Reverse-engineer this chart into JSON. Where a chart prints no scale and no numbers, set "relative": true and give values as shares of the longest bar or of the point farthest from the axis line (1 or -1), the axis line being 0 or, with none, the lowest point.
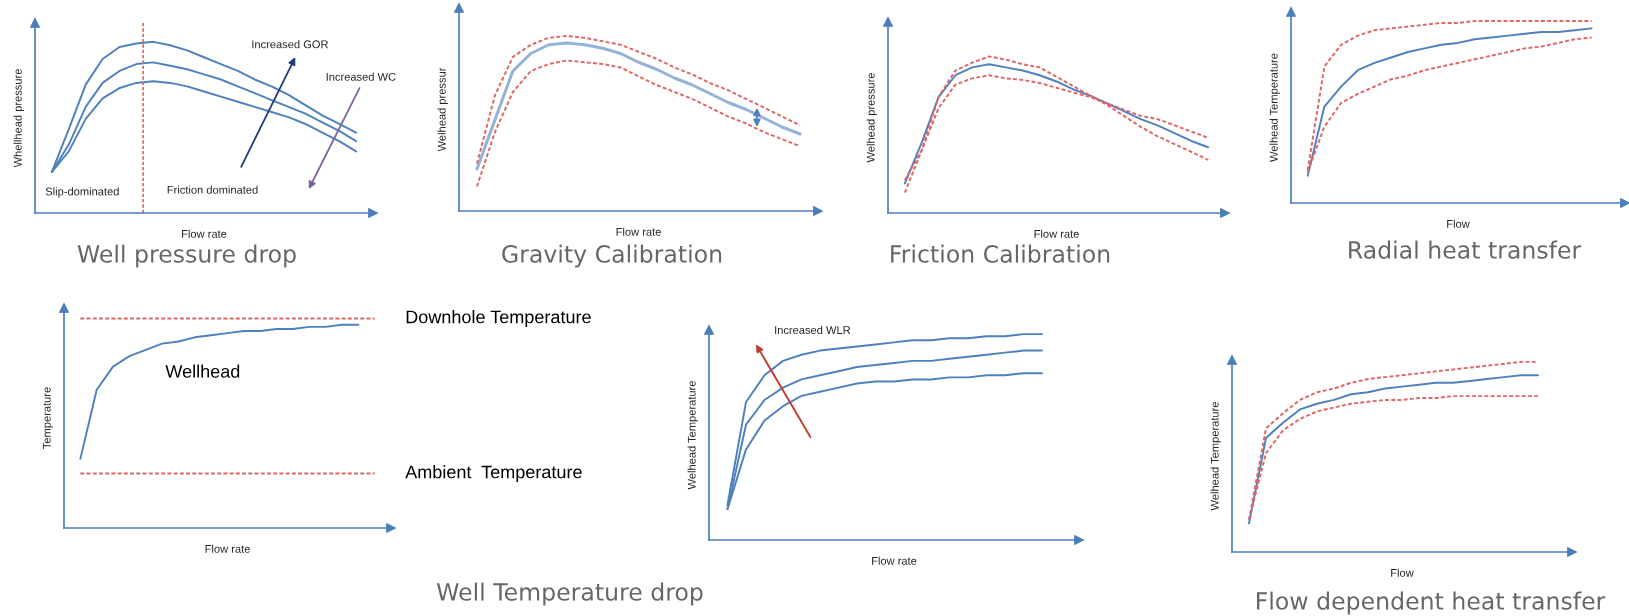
{
  "chart_data": [
    {
      "type": "line",
      "relative": true,
      "title": "Well pressure drop",
      "xlabel": "Flow rate",
      "ylabel": "Whellhead pressure",
      "categories": [
        null,
        null,
        null,
        null,
        null,
        null,
        null,
        null,
        null,
        null,
        null,
        null,
        null,
        null,
        null,
        null,
        null,
        null,
        null,
        null
      ],
      "series": [
        {
          "color": "#4f81bd",
          "line_style": "solid",
          "values": [
            0.24,
            0.49,
            0.75,
            0.9,
            0.97,
            0.99,
            1.0,
            0.98,
            0.95,
            0.91,
            0.87,
            0.83,
            0.78,
            0.74,
            0.69,
            0.63,
            0.57,
            0.52,
            0.47,
            null
          ]
        },
        {
          "color": "#4f81bd",
          "line_style": "solid",
          "values": [
            0.24,
            0.4,
            0.62,
            0.76,
            0.83,
            0.87,
            0.88,
            0.86,
            0.84,
            0.81,
            0.78,
            0.74,
            0.7,
            0.66,
            0.62,
            0.58,
            0.53,
            0.48,
            0.42,
            null
          ]
        },
        {
          "color": "#4f81bd",
          "line_style": "solid",
          "values": [
            0.24,
            0.36,
            0.55,
            0.67,
            0.73,
            0.76,
            0.77,
            0.76,
            0.74,
            0.71,
            0.68,
            0.65,
            0.62,
            0.59,
            0.56,
            0.52,
            0.47,
            0.42,
            0.36,
            null
          ]
        }
      ],
      "annotations": [
        "Slip-dominated",
        "Friction dominated",
        "Increased GOR",
        "Increased WC"
      ]
    },
    {
      "type": "line",
      "relative": true,
      "title": "Gravity Calibration",
      "xlabel": "Flow rate",
      "ylabel": "Welhead pressur",
      "categories": [
        null,
        null,
        null,
        null,
        null,
        null,
        null,
        null,
        null,
        null,
        null,
        null,
        null,
        null,
        null,
        null,
        null,
        null,
        null,
        null
      ],
      "series": [
        {
          "color": "#95b3d7",
          "line_style": "solid",
          "values": [
            0.24,
            0.52,
            0.8,
            0.9,
            0.95,
            0.96,
            0.95,
            0.93,
            0.9,
            0.85,
            0.81,
            0.76,
            0.72,
            0.67,
            0.62,
            0.58,
            0.53,
            0.48,
            0.44,
            null
          ]
        },
        {
          "color": "#e06666",
          "line_style": "dashed",
          "values": [
            0.27,
            0.66,
            0.88,
            0.95,
            0.99,
            1,
            0.99,
            0.97,
            0.95,
            0.91,
            0.87,
            0.82,
            0.78,
            0.73,
            0.69,
            0.64,
            0.59,
            0.54,
            0.49,
            null
          ]
        },
        {
          "color": "#e06666",
          "line_style": "dashed",
          "values": [
            0.14,
            0.45,
            0.68,
            0.8,
            0.84,
            0.86,
            0.85,
            0.84,
            0.82,
            0.77,
            0.72,
            0.68,
            0.64,
            0.59,
            0.54,
            0.5,
            0.45,
            0.41,
            0.37,
            null
          ]
        }
      ]
    },
    {
      "type": "line",
      "relative": true,
      "title": "Friction Calibration",
      "xlabel": "Flow rate",
      "ylabel": "Welhead pressure",
      "categories": [
        null,
        null,
        null,
        null,
        null,
        null,
        null,
        null,
        null,
        null,
        null,
        null,
        null,
        null,
        null,
        null,
        null,
        null,
        null,
        null
      ],
      "series": [
        {
          "color": "#4f81bd",
          "line_style": "solid",
          "values": [
            0.19,
            0.45,
            0.74,
            0.88,
            0.93,
            0.95,
            0.93,
            0.91,
            0.88,
            0.84,
            0.79,
            0.75,
            0.7,
            0.65,
            0.6,
            0.56,
            0.51,
            0.46,
            0.42,
            null
          ]
        },
        {
          "color": "#e06666",
          "line_style": "dashed",
          "values": [
            0.13,
            0.4,
            0.74,
            0.91,
            0.96,
            1,
            0.98,
            0.95,
            0.93,
            0.87,
            0.81,
            0.75,
            0.69,
            0.62,
            0.55,
            0.49,
            0.44,
            0.39,
            0.34,
            null
          ]
        },
        {
          "color": "#e06666",
          "line_style": "dashed",
          "values": [
            0.21,
            0.4,
            0.67,
            0.82,
            0.86,
            0.88,
            0.86,
            0.85,
            0.83,
            0.8,
            0.77,
            0.74,
            0.7,
            0.66,
            0.62,
            0.6,
            0.56,
            0.52,
            0.48,
            null
          ]
        }
      ]
    },
    {
      "type": "line",
      "relative": true,
      "title": "Radial heat transfer",
      "xlabel": "Flow",
      "ylabel": "Welhead Temperature",
      "categories": [
        null,
        null,
        null,
        null,
        null,
        null,
        null,
        null,
        null,
        null,
        null,
        null,
        null,
        null,
        null,
        null,
        null,
        null,
        null,
        null
      ],
      "series": [
        {
          "color": "#4f81bd",
          "line_style": "solid",
          "values": [
            0.15,
            0.53,
            0.64,
            0.73,
            0.77,
            0.8,
            0.83,
            0.85,
            0.87,
            0.88,
            0.9,
            0.91,
            0.92,
            0.93,
            0.94,
            0.94,
            0.95,
            0.96,
            null,
            null
          ]
        },
        {
          "color": "#e06666",
          "line_style": "dashed",
          "values": [
            0.18,
            0.75,
            0.87,
            0.92,
            0.95,
            0.96,
            0.97,
            0.98,
            0.99,
            0.99,
            1,
            1,
            1,
            1,
            1,
            1,
            1,
            1,
            null,
            null
          ]
        },
        {
          "color": "#e06666",
          "line_style": "dashed",
          "values": [
            0.17,
            0.42,
            0.55,
            0.6,
            0.64,
            0.68,
            0.7,
            0.73,
            0.75,
            0.77,
            0.79,
            0.81,
            0.83,
            0.85,
            0.86,
            0.88,
            0.9,
            0.91,
            null,
            null
          ]
        }
      ]
    },
    {
      "type": "line",
      "relative": true,
      "xlabel": "Flow rate",
      "ylabel": "Temperature",
      "categories": [
        null,
        null,
        null,
        null,
        null,
        null,
        null,
        null,
        null,
        null,
        null,
        null,
        null,
        null,
        null,
        null,
        null,
        null,
        null,
        null
      ],
      "series": [
        {
          "name": "Wellhead",
          "color": "#4f81bd",
          "line_style": "solid",
          "values": [
            0.33,
            0.66,
            0.77,
            0.82,
            0.85,
            0.88,
            0.89,
            0.91,
            0.92,
            0.93,
            0.94,
            0.94,
            0.95,
            0.95,
            0.96,
            0.96,
            0.97,
            0.97,
            null,
            null
          ]
        },
        {
          "name": "Downhole Temperature",
          "color": "#e06666",
          "line_style": "dashed",
          "values": [
            1,
            1,
            1,
            1,
            1,
            1,
            1,
            1,
            1,
            1,
            1,
            1,
            1,
            1,
            1,
            1,
            1,
            1,
            1,
            null
          ]
        },
        {
          "name": "Ambient  Temperature",
          "color": "#e06666",
          "line_style": "dashed",
          "values": [
            0.26,
            0.26,
            0.26,
            0.26,
            0.26,
            0.26,
            0.26,
            0.26,
            0.26,
            0.26,
            0.26,
            0.26,
            0.26,
            0.26,
            0.26,
            0.26,
            0.26,
            0.26,
            0.26,
            null
          ]
        }
      ]
    },
    {
      "type": "line",
      "relative": true,
      "title": "Well Temperature drop",
      "xlabel": "Flow rate",
      "ylabel": "Welhead Temperature",
      "categories": [
        null,
        null,
        null,
        null,
        null,
        null,
        null,
        null,
        null,
        null,
        null,
        null,
        null,
        null,
        null,
        null,
        null,
        null,
        null,
        null
      ],
      "series": [
        {
          "color": "#4f81bd",
          "line_style": "solid",
          "values": [
            0.17,
            0.67,
            0.8,
            0.87,
            0.9,
            0.92,
            0.93,
            0.94,
            0.95,
            0.96,
            0.97,
            0.97,
            0.98,
            0.98,
            0.99,
            0.99,
            1,
            1,
            null,
            null
          ]
        },
        {
          "color": "#4f81bd",
          "line_style": "solid",
          "values": [
            0.15,
            0.56,
            0.68,
            0.74,
            0.78,
            0.8,
            0.82,
            0.84,
            0.85,
            0.86,
            0.87,
            0.87,
            0.88,
            0.89,
            0.9,
            0.91,
            0.92,
            0.92,
            null,
            null
          ]
        },
        {
          "color": "#4f81bd",
          "line_style": "solid",
          "values": [
            0.15,
            0.44,
            0.58,
            0.65,
            0.7,
            0.72,
            0.74,
            0.76,
            0.77,
            0.77,
            0.78,
            0.78,
            0.79,
            0.79,
            0.8,
            0.8,
            0.81,
            0.81,
            null,
            null
          ]
        }
      ],
      "annotations": [
        "Increased WLR"
      ]
    },
    {
      "type": "line",
      "relative": true,
      "title": "Flow dependent heat transfer",
      "xlabel": "Flow",
      "ylabel": "Welhead Temperature",
      "categories": [
        null,
        null,
        null,
        null,
        null,
        null,
        null,
        null,
        null,
        null,
        null,
        null,
        null,
        null,
        null,
        null,
        null,
        null,
        null,
        null
      ],
      "series": [
        {
          "color": "#4f81bd",
          "line_style": "solid",
          "values": [
            0.15,
            0.6,
            0.68,
            0.75,
            0.78,
            0.8,
            0.83,
            0.84,
            0.86,
            0.87,
            0.88,
            0.89,
            0.89,
            0.9,
            0.91,
            0.92,
            0.93,
            0.93,
            null,
            null
          ]
        },
        {
          "color": "#e06666",
          "line_style": "dashed",
          "values": [
            0.17,
            0.65,
            0.73,
            0.8,
            0.84,
            0.86,
            0.89,
            0.91,
            0.92,
            0.93,
            0.94,
            0.95,
            0.96,
            0.97,
            0.98,
            0.99,
            1,
            1,
            null,
            null
          ]
        },
        {
          "color": "#e06666",
          "line_style": "dashed",
          "values": [
            0.17,
            0.52,
            0.64,
            0.7,
            0.74,
            0.76,
            0.78,
            0.79,
            0.8,
            0.8,
            0.81,
            0.81,
            0.82,
            0.82,
            0.82,
            0.82,
            0.82,
            0.82,
            null,
            null
          ]
        }
      ]
    }
  ]
}
